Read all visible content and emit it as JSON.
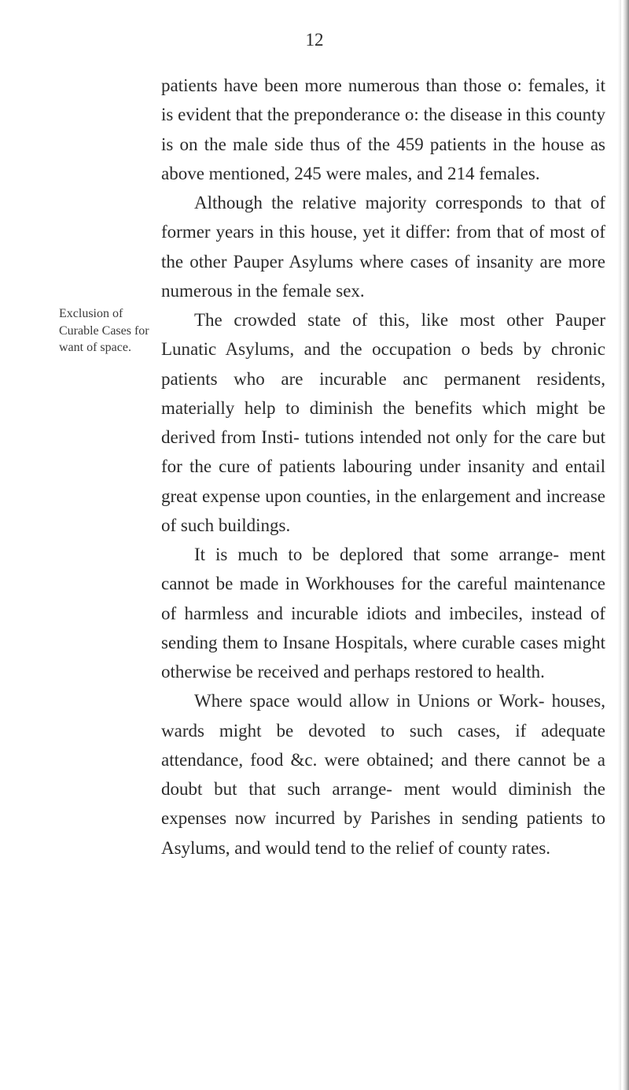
{
  "page_number": "12",
  "paragraphs": {
    "p1": "patients have been more numerous than those o: females, it is evident that the preponderance o: the disease in this county is on the male side thus of the 459 patients in the house as above mentioned, 245 were males, and 214 females.",
    "p2": "Although the relative majority corresponds to that of former years in this house, yet it differ: from that of most of the other Pauper Asylums where cases of insanity are more numerous in the female sex.",
    "p3": "The crowded state of this, like most other Pauper Lunatic Asylums, and the occupation o beds by chronic patients who are incurable anc permanent residents, materially help to diminish the benefits which might be derived from Insti- tutions intended not only for the care but for the cure of patients labouring under insanity and entail great expense upon counties, in the enlargement and increase of such buildings.",
    "p4": "It is much to be deplored that some arrange- ment cannot be made in Workhouses for the careful maintenance of harmless and incurable idiots and imbeciles, instead of sending them to Insane Hospitals, where curable cases might otherwise be received and perhaps restored to health.",
    "p5": "Where space would allow in Unions or Work- houses, wards might be devoted to such cases, if adequate attendance, food &c. were obtained; and there cannot be a doubt but that such arrange- ment would diminish the expenses now incurred by Parishes in sending patients to Asylums, and would tend to the relief of county rates."
  },
  "margin_note": "Exclusion of Curable Cases for want of space.",
  "styling": {
    "body_font_size": 23,
    "body_line_height": 1.62,
    "margin_font_size": 16,
    "text_color": "#2a2a2a",
    "margin_color": "#3a3a3a",
    "background_color": "#ffffff",
    "left_margin": 130,
    "text_indent": 42
  }
}
